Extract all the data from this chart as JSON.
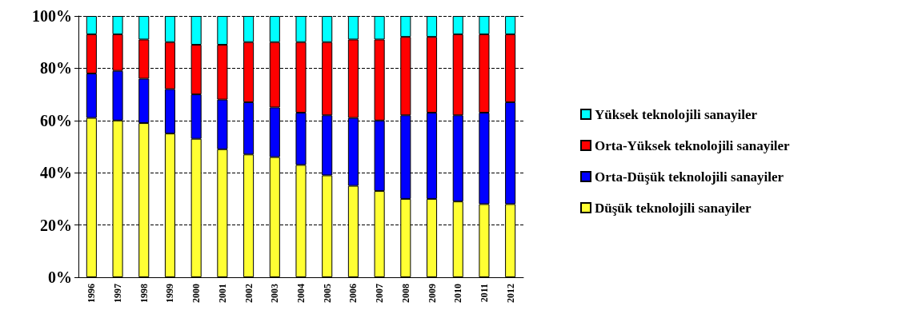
{
  "chart_data": {
    "type": "bar",
    "stacked": true,
    "categories": [
      "1996",
      "1997",
      "1998",
      "1999",
      "2000",
      "2001",
      "2002",
      "2003",
      "2004",
      "2005",
      "2006",
      "2007",
      "2008",
      "2009",
      "2010",
      "2011",
      "2012"
    ],
    "series": [
      {
        "name": "Düşük teknolojili sanayiler",
        "color": "#ffff33",
        "values": [
          61,
          60,
          59,
          55,
          53,
          49,
          47,
          46,
          43,
          39,
          35,
          33,
          30,
          30,
          29,
          28,
          28
        ]
      },
      {
        "name": "Orta-Düşük teknolojili sanayiler",
        "color": "#0000ff",
        "values": [
          17,
          19,
          17,
          17,
          17,
          19,
          20,
          19,
          20,
          23,
          26,
          27,
          32,
          33,
          33,
          35,
          39
        ]
      },
      {
        "name": "Orta-Yüksek teknolojili sanayiler",
        "color": "#ff0000",
        "values": [
          15,
          14,
          15,
          18,
          19,
          21,
          23,
          25,
          27,
          28,
          30,
          31,
          30,
          29,
          31,
          30,
          26
        ]
      },
      {
        "name": "Yüksek teknolojili sanayiler",
        "color": "#00ffff",
        "values": [
          7,
          7,
          9,
          10,
          11,
          11,
          10,
          10,
          10,
          10,
          9,
          9,
          8,
          8,
          7,
          7,
          7
        ]
      }
    ],
    "ylim": [
      0,
      100
    ],
    "yticks": [
      {
        "value": 0,
        "label": "0%"
      },
      {
        "value": 20,
        "label": "20%"
      },
      {
        "value": 40,
        "label": "40%"
      },
      {
        "value": 60,
        "label": "60%"
      },
      {
        "value": 80,
        "label": "80%"
      },
      {
        "value": 100,
        "label": "100%"
      }
    ],
    "grid": "y",
    "legend": "right"
  }
}
